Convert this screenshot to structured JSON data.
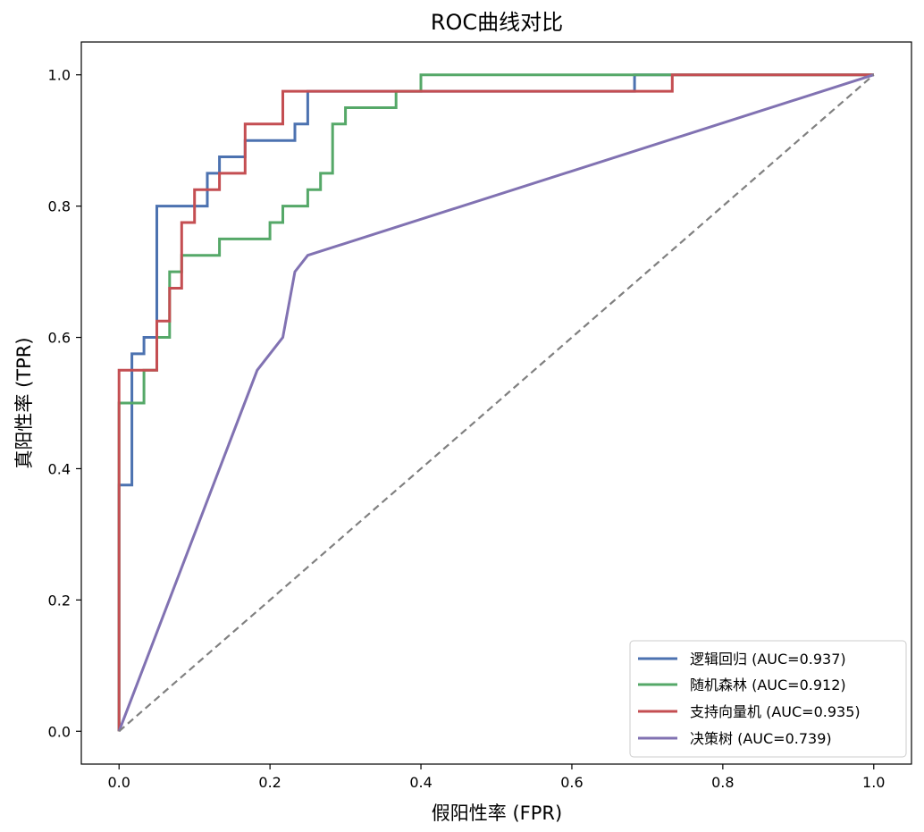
{
  "chart_data": {
    "type": "line",
    "title": "ROC曲线对比",
    "xlabel": "假阳性率 (FPR)",
    "ylabel": "真阳性率 (TPR)",
    "xlim": [
      -0.05,
      1.05
    ],
    "ylim": [
      -0.05,
      1.05
    ],
    "xticks": [
      0.0,
      0.2,
      0.4,
      0.6,
      0.8,
      1.0
    ],
    "xtick_labels": [
      "0.0",
      "0.2",
      "0.4",
      "0.6",
      "0.8",
      "1.0"
    ],
    "yticks": [
      0.0,
      0.2,
      0.4,
      0.6,
      0.8,
      1.0
    ],
    "ytick_labels": [
      "0.0",
      "0.2",
      "0.4",
      "0.6",
      "0.8",
      "1.0"
    ],
    "grid": false,
    "legend_position": "lower-right",
    "series": [
      {
        "name": "逻辑回归 (AUC=0.937)",
        "color": "#4c72b0",
        "x": [
          0,
          0,
          0.017,
          0.017,
          0.033,
          0.033,
          0.05,
          0.05,
          0.117,
          0.117,
          0.133,
          0.133,
          0.167,
          0.167,
          0.233,
          0.233,
          0.25,
          0.25,
          0.683,
          0.683,
          1.0
        ],
        "y": [
          0,
          0.375,
          0.375,
          0.575,
          0.575,
          0.6,
          0.6,
          0.8,
          0.8,
          0.85,
          0.85,
          0.875,
          0.875,
          0.9,
          0.9,
          0.925,
          0.925,
          0.975,
          0.975,
          1.0,
          1.0
        ]
      },
      {
        "name": "随机森林 (AUC=0.912)",
        "color": "#55a868",
        "x": [
          0,
          0,
          0.033,
          0.033,
          0.05,
          0.05,
          0.067,
          0.067,
          0.083,
          0.083,
          0.133,
          0.133,
          0.2,
          0.2,
          0.217,
          0.217,
          0.25,
          0.25,
          0.267,
          0.267,
          0.283,
          0.283,
          0.3,
          0.3,
          0.367,
          0.367,
          0.4,
          0.4,
          1.0
        ],
        "y": [
          0,
          0.5,
          0.5,
          0.55,
          0.55,
          0.6,
          0.6,
          0.7,
          0.7,
          0.725,
          0.725,
          0.75,
          0.75,
          0.775,
          0.775,
          0.8,
          0.8,
          0.825,
          0.825,
          0.85,
          0.85,
          0.925,
          0.925,
          0.95,
          0.95,
          0.975,
          0.975,
          1.0,
          1.0
        ]
      },
      {
        "name": "支持向量机 (AUC=0.935)",
        "color": "#c44e52",
        "x": [
          0,
          0,
          0.05,
          0.05,
          0.067,
          0.067,
          0.083,
          0.083,
          0.1,
          0.1,
          0.133,
          0.133,
          0.167,
          0.167,
          0.217,
          0.217,
          0.733,
          0.733,
          1.0
        ],
        "y": [
          0,
          0.55,
          0.55,
          0.625,
          0.625,
          0.675,
          0.675,
          0.775,
          0.775,
          0.825,
          0.825,
          0.85,
          0.85,
          0.925,
          0.925,
          0.975,
          0.975,
          1.0,
          1.0
        ]
      },
      {
        "name": "决策树 (AUC=0.739)",
        "color": "#8172b2",
        "x": [
          0,
          0.183,
          0.217,
          0.233,
          0.25,
          1.0
        ],
        "y": [
          0,
          0.55,
          0.6,
          0.7,
          0.725,
          1.0
        ]
      }
    ],
    "reference_line": {
      "color": "#808080",
      "style": "dashed",
      "x": [
        0,
        1
      ],
      "y": [
        0,
        1
      ]
    }
  }
}
